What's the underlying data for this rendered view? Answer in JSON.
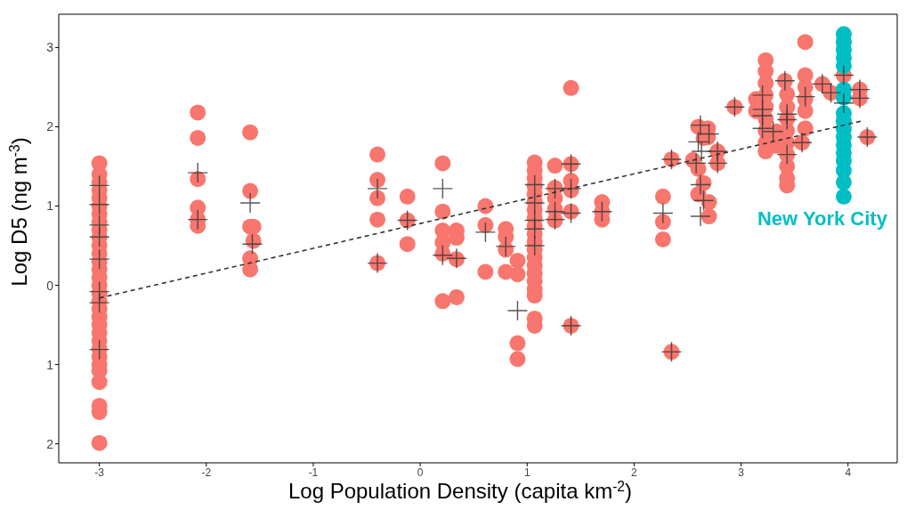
{
  "chart_data": {
    "type": "scatter",
    "xlabel": "Log Population Density (capita km$^{-2}$)",
    "ylabel": "Log D5 (ng m$^{-3}$)",
    "xlim": [
      -3.38,
      4.46
    ],
    "ylim": [
      -2.24,
      3.42
    ],
    "xticks": [
      -3,
      -2,
      -1,
      0,
      1,
      2,
      3,
      4
    ],
    "yticks": [
      {
        "value": -2,
        "label": "2"
      },
      {
        "value": -1,
        "label": "1"
      },
      0,
      1,
      2,
      3
    ],
    "series": [
      {
        "type": "scatter",
        "marker": "circle",
        "color": "#f8766d",
        "x": [
          -3,
          -3,
          -3,
          -3,
          -3,
          -3,
          -3,
          -3,
          -3,
          -3,
          -3,
          -3,
          -3,
          -3,
          -3,
          -3,
          -3,
          -3,
          -3,
          -3,
          -3,
          -3,
          -3,
          -3,
          -3,
          -3,
          -3,
          -3,
          -3,
          -3,
          -3,
          -2.08,
          -2.08,
          -2.08,
          -2.08,
          -2.08,
          -2.08,
          -1.59,
          -1.59,
          -1.59,
          -1.56,
          -1.56,
          -1.59,
          -1.59,
          -0.4,
          -0.4,
          -0.4,
          -0.4,
          -0.4,
          -0.12,
          -0.12,
          -0.12,
          0.21,
          0.21,
          0.21,
          0.21,
          0.21,
          0.21,
          0.34,
          0.34,
          0.34,
          0.34,
          0.61,
          0.61,
          0.61,
          0.8,
          0.8,
          0.8,
          0.8,
          0.91,
          0.91,
          0.91,
          0.91,
          1.07,
          1.07,
          1.07,
          1.07,
          1.07,
          1.07,
          1.07,
          1.07,
          1.07,
          1.07,
          1.07,
          1.07,
          1.07,
          1.07,
          1.07,
          1.07,
          1.07,
          1.07,
          1.07,
          1.07,
          1.26,
          1.26,
          1.26,
          1.26,
          1.26,
          1.41,
          1.41,
          1.41,
          1.41,
          1.41,
          1.41,
          1.7,
          1.7,
          1.7,
          2.27,
          2.27,
          2.27,
          2.35,
          2.35,
          2.6,
          2.65,
          2.55,
          2.6,
          2.65,
          2.6,
          2.7,
          2.7,
          2.69,
          2.69,
          2.78,
          2.78,
          2.94,
          3.23,
          3.23,
          3.23,
          3.23,
          3.23,
          3.23,
          3.23,
          3.23,
          3.23,
          3.14,
          3.14,
          3.41,
          3.43,
          3.43,
          3.43,
          3.43,
          3.43,
          3.43,
          3.43,
          3.43,
          3.43,
          3.33,
          3.33,
          3.57,
          3.6,
          3.6,
          3.6,
          3.6,
          3.6,
          3.6,
          3.76,
          3.84,
          3.96,
          4.11,
          4.11,
          4.18
        ],
        "values": [
          1.54,
          1.4,
          1.3,
          1.2,
          1.1,
          1.0,
          0.9,
          0.8,
          0.7,
          0.6,
          0.5,
          0.4,
          0.3,
          0.2,
          0.1,
          0,
          -0.1,
          -0.2,
          -0.3,
          -0.4,
          -0.5,
          -0.6,
          -0.7,
          -0.8,
          -0.9,
          -1.0,
          -1.08,
          -1.22,
          -1.52,
          -1.6,
          -1.99,
          2.18,
          1.86,
          1.34,
          0.98,
          0.83,
          0.75,
          1.93,
          1.19,
          0.74,
          0.74,
          0.56,
          0.34,
          0.2,
          1.65,
          1.33,
          1.1,
          0.83,
          0.28,
          1.12,
          0.82,
          0.52,
          1.54,
          0.93,
          0.69,
          0.54,
          0.4,
          -0.2,
          0.69,
          0.6,
          0.33,
          -0.15,
          1.0,
          0.76,
          0.17,
          0.71,
          0.61,
          0.45,
          0.17,
          0.31,
          0.14,
          -0.73,
          -0.93,
          1.55,
          1.45,
          1.35,
          1.25,
          1.15,
          1.05,
          0.95,
          0.85,
          0.75,
          0.65,
          0.55,
          0.45,
          0.35,
          0.25,
          0.15,
          0.05,
          -0.05,
          -0.13,
          -0.42,
          -0.51,
          1.51,
          1.23,
          1.1,
          0.96,
          0.82,
          2.49,
          1.53,
          1.32,
          1.2,
          0.93,
          -0.51,
          1.05,
          0.93,
          0.83,
          1.12,
          0.8,
          0.58,
          -0.84,
          1.59,
          2.0,
          1.86,
          1.58,
          1.47,
          1.29,
          1.15,
          1.05,
          0.87,
          1.98,
          1.87,
          1.69,
          1.54,
          2.25,
          2.84,
          2.7,
          2.55,
          2.4,
          2.25,
          2.1,
          1.95,
          1.8,
          1.69,
          2.35,
          2.2,
          2.58,
          2.41,
          2.25,
          2.1,
          1.95,
          1.8,
          1.65,
          1.5,
          1.35,
          1.26,
          1.94,
          1.76,
          1.8,
          3.07,
          2.65,
          2.5,
          2.35,
          2.2,
          1.98,
          2.54,
          2.43,
          2.65,
          2.47,
          2.36,
          1.87
        ]
      },
      {
        "type": "scatter",
        "marker": "circle",
        "name": "New York City",
        "color": "#00bfc4",
        "x": [
          3.96,
          3.96,
          3.96,
          3.96,
          3.96,
          3.96,
          3.96,
          3.96,
          3.96,
          3.96,
          3.96,
          3.96,
          3.96,
          3.96,
          3.96,
          3.96,
          3.96
        ],
        "values": [
          3.17,
          3.07,
          2.97,
          2.87,
          2.77,
          2.47,
          2.37,
          2.17,
          2.07,
          1.97,
          1.87,
          1.77,
          1.67,
          1.57,
          1.45,
          1.3,
          1.12
        ]
      },
      {
        "type": "scatter",
        "marker": "cross",
        "color": "#3a3a3a",
        "x": [
          -3,
          -3,
          -3,
          -3,
          -3,
          -3,
          -3,
          -3,
          -2.08,
          -2.08,
          -1.59,
          -1.57,
          -0.4,
          -0.4,
          -0.12,
          0.21,
          0.21,
          0.34,
          0.61,
          0.8,
          0.91,
          1.07,
          1.07,
          1.07,
          1.07,
          1.07,
          1.26,
          1.26,
          1.26,
          1.41,
          1.41,
          1.41,
          1.41,
          1.7,
          2.27,
          2.35,
          2.35,
          2.62,
          2.6,
          2.63,
          2.58,
          2.62,
          2.65,
          2.62,
          2.7,
          2.78,
          2.78,
          2.94,
          3.2,
          3.2,
          3.2,
          3.2,
          3.41,
          3.43,
          3.43,
          3.43,
          3.3,
          3.57,
          3.6,
          3.76,
          3.84,
          3.96,
          3.96,
          4.11,
          4.11,
          4.18
        ],
        "values": [
          1.26,
          1.02,
          0.76,
          0.61,
          0.33,
          -0.08,
          -0.22,
          -0.81,
          1.42,
          0.83,
          1.04,
          0.52,
          1.22,
          0.28,
          0.82,
          1.22,
          0.38,
          0.34,
          0.67,
          0.49,
          -0.32,
          1.27,
          1.04,
          0.82,
          0.71,
          0.5,
          1.22,
          0.93,
          0.83,
          1.53,
          1.22,
          0.91,
          -0.51,
          0.93,
          0.91,
          -0.84,
          1.59,
          2.02,
          1.81,
          1.69,
          1.54,
          1.27,
          1.07,
          0.87,
          1.91,
          1.69,
          1.54,
          2.25,
          2.4,
          2.22,
          2.14,
          1.98,
          2.58,
          2.16,
          2.09,
          1.65,
          1.94,
          1.8,
          2.38,
          2.54,
          2.43,
          2.65,
          2.3,
          2.47,
          2.36,
          1.87
        ]
      },
      {
        "type": "line",
        "marker": "none",
        "line_style": "dashed",
        "color": "#333333",
        "x": [
          -3,
          4.12
        ],
        "values": [
          -0.16,
          2.07
        ]
      }
    ]
  }
}
